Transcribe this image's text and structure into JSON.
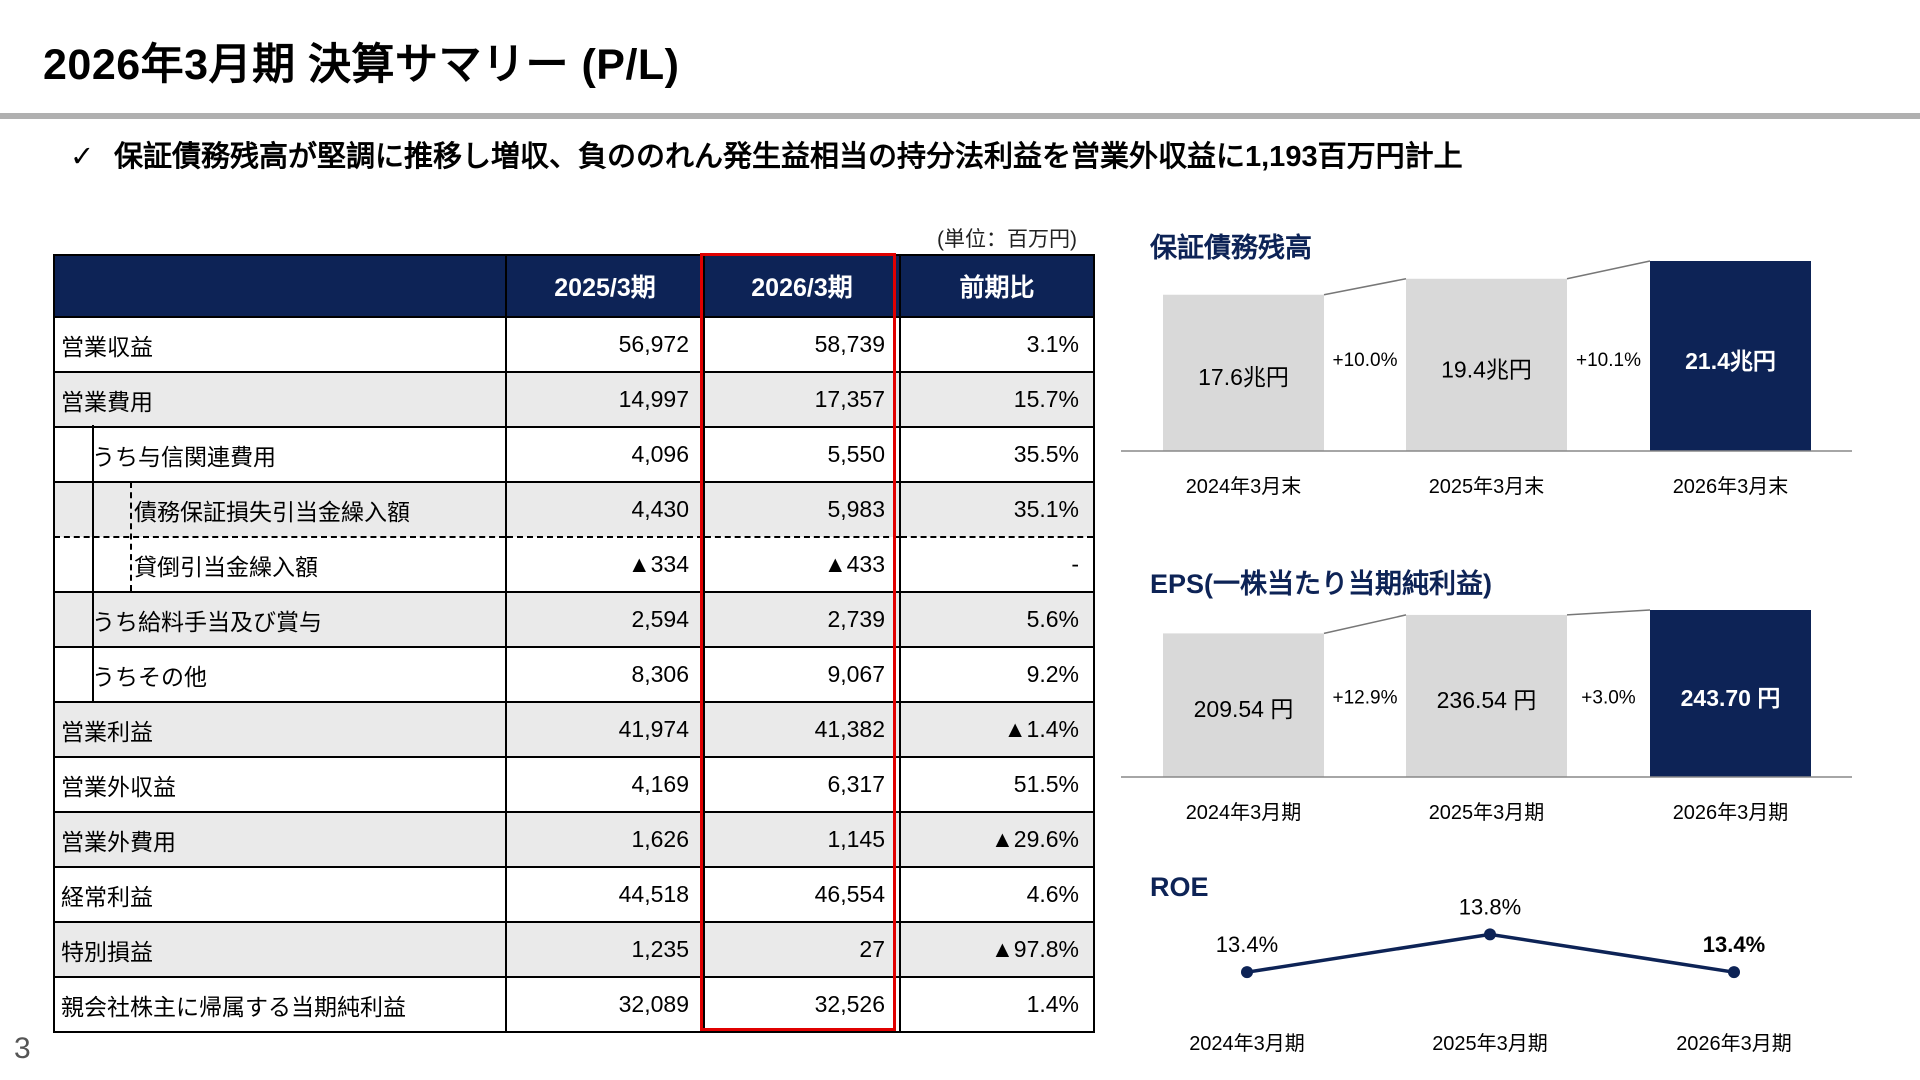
{
  "title": "2026年3月期 決算サマリー (P/L)",
  "headline": {
    "check": "✓",
    "text": "保証債務残高が堅調に推移し増収、負ののれん発生益相当の持分法利益を営業外収益に1,193百万円計上"
  },
  "unit": "(単位：百万円)",
  "page_number": "3",
  "table": {
    "headers": [
      "",
      "2025/3期",
      "2026/3期",
      "前期比"
    ],
    "rows": [
      {
        "label": "営業収益",
        "v2025": "56,972",
        "v2026": "58,739",
        "yoy": "3.1%"
      },
      {
        "label": "営業費用",
        "v2025": "14,997",
        "v2026": "17,357",
        "yoy": "15.7%"
      },
      {
        "label": "うち与信関連費用",
        "v2025": "4,096",
        "v2026": "5,550",
        "yoy": "35.5%"
      },
      {
        "label": "債務保証損失引当金繰入額",
        "v2025": "4,430",
        "v2026": "5,983",
        "yoy": "35.1%"
      },
      {
        "label": "貸倒引当金繰入額",
        "v2025": "▲334",
        "v2026": "▲433",
        "yoy": "-"
      },
      {
        "label": "うち給料手当及び賞与",
        "v2025": "2,594",
        "v2026": "2,739",
        "yoy": "5.6%"
      },
      {
        "label": "うちその他",
        "v2025": "8,306",
        "v2026": "9,067",
        "yoy": "9.2%"
      },
      {
        "label": "営業利益",
        "v2025": "41,974",
        "v2026": "41,382",
        "yoy": "▲1.4%"
      },
      {
        "label": "営業外収益",
        "v2025": "4,169",
        "v2026": "6,317",
        "yoy": "51.5%"
      },
      {
        "label": "営業外費用",
        "v2025": "1,626",
        "v2026": "1,145",
        "yoy": "▲29.6%"
      },
      {
        "label": "経常利益",
        "v2025": "44,518",
        "v2026": "46,554",
        "yoy": "4.6%"
      },
      {
        "label": "特別損益",
        "v2025": "1,235",
        "v2026": "27",
        "yoy": "▲97.8%"
      },
      {
        "label": "親会社株主に帰属する当期純利益",
        "v2025": "32,089",
        "v2026": "32,526",
        "yoy": "1.4%"
      }
    ]
  },
  "colors": {
    "navy": "#0d2356",
    "gray_bar": "#d9d9d9",
    "highlight": "#e00000"
  },
  "chart_data": [
    {
      "type": "bar",
      "title": "保証債務残高",
      "categories": [
        "2024年3月末",
        "2025年3月末",
        "2026年3月末"
      ],
      "values": [
        17.6,
        19.4,
        21.4
      ],
      "value_labels": [
        "17.6兆円",
        "19.4兆円",
        "21.4兆円"
      ],
      "growth_labels": [
        "+10.0%",
        "+10.1%"
      ],
      "ylim": [
        0,
        21.4
      ]
    },
    {
      "type": "bar",
      "title": "EPS(一株当たり当期純利益)",
      "categories": [
        "2024年3月期",
        "2025年3月期",
        "2026年3月期"
      ],
      "values": [
        209.54,
        236.54,
        243.7
      ],
      "value_labels": [
        "209.54 円",
        "236.54 円",
        "243.70 円"
      ],
      "growth_labels": [
        "+12.9%",
        "+3.0%"
      ],
      "ylim": [
        0,
        243.7
      ]
    },
    {
      "type": "line",
      "title": "ROE",
      "categories": [
        "2024年3月期",
        "2025年3月期",
        "2026年3月期"
      ],
      "values": [
        13.4,
        13.8,
        13.4
      ],
      "value_labels": [
        "13.4%",
        "13.8%",
        "13.4%"
      ]
    }
  ]
}
